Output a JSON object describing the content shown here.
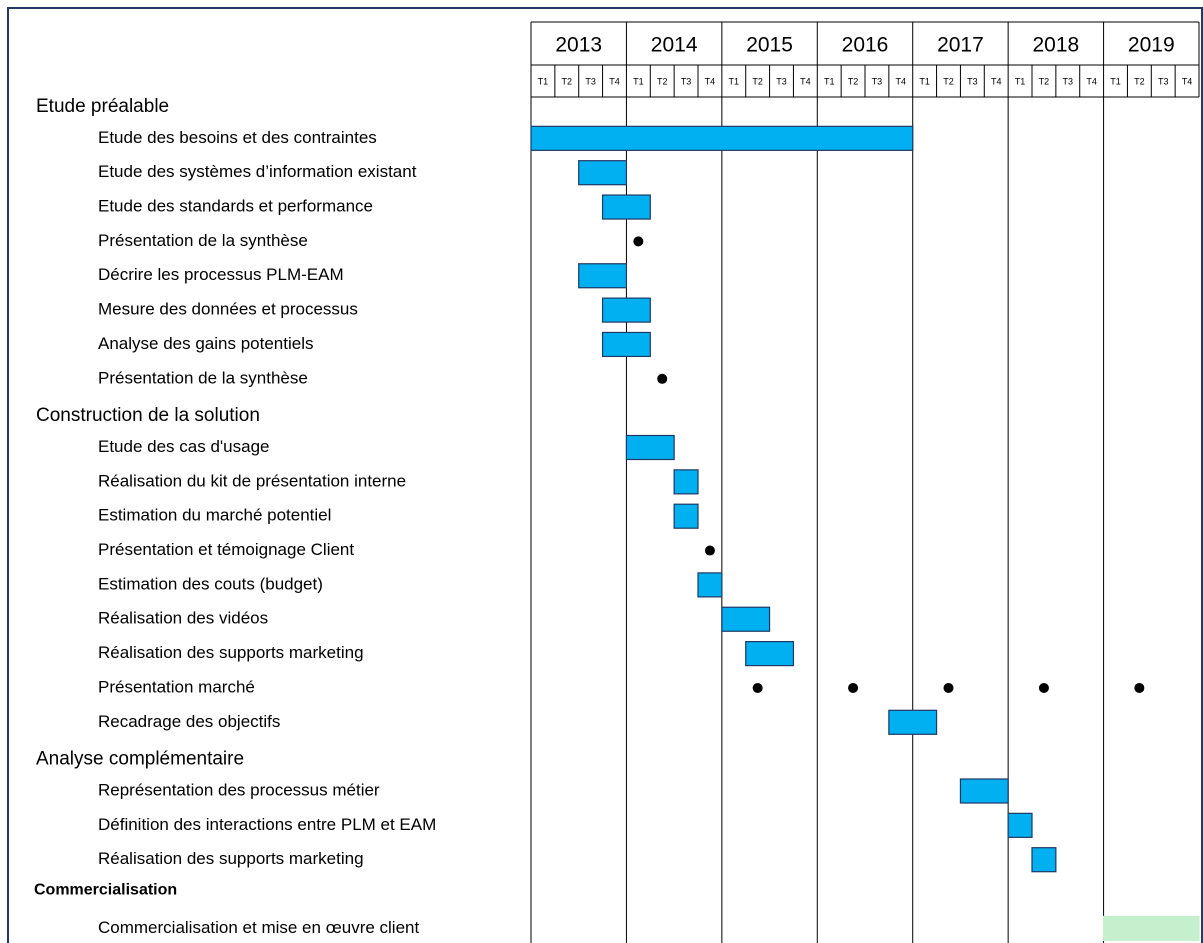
{
  "chart_data": {
    "type": "gantt",
    "years": [
      "2013",
      "2014",
      "2015",
      "2016",
      "2017",
      "2018",
      "2019"
    ],
    "quarters": [
      "T1",
      "T2",
      "T3",
      "T4"
    ],
    "xlim": [
      0,
      28
    ],
    "bar_color": "#00b0f0",
    "alt_color": "#c6efce",
    "milestone_color": "#000000",
    "rows": [
      {
        "label": "Etude préalable",
        "kind": "section"
      },
      {
        "label": "Etude des besoins et des contraintes",
        "start": 0,
        "duration": 16
      },
      {
        "label": "Etude des systèmes d’information existant",
        "start": 2,
        "duration": 2
      },
      {
        "label": "Etude des standards et performance",
        "start": 3,
        "duration": 2
      },
      {
        "label": "Présentation de la synthèse",
        "milestones": [
          4.5
        ]
      },
      {
        "label": "Décrire les processus PLM-EAM",
        "start": 2,
        "duration": 2
      },
      {
        "label": "Mesure des données et processus",
        "start": 3,
        "duration": 2
      },
      {
        "label": "Analyse des gains potentiels",
        "start": 3,
        "duration": 2
      },
      {
        "label": "Présentation de la synthèse",
        "milestones": [
          5.5
        ]
      },
      {
        "label": "Construction de la solution",
        "kind": "section"
      },
      {
        "label": "Etude des cas d'usage",
        "start": 4,
        "duration": 2
      },
      {
        "label": "Réalisation du kit de présentation interne",
        "start": 6,
        "duration": 1
      },
      {
        "label": "Estimation du marché potentiel",
        "start": 6,
        "duration": 1
      },
      {
        "label": "Présentation et témoignage Client",
        "milestones": [
          7.5
        ]
      },
      {
        "label": "Estimation des couts (budget)",
        "start": 7,
        "duration": 1
      },
      {
        "label": "Réalisation des vidéos",
        "start": 8,
        "duration": 2
      },
      {
        "label": "Réalisation des supports marketing",
        "start": 9,
        "duration": 2
      },
      {
        "label": "Présentation marché",
        "milestones": [
          9.5,
          13.5,
          17.5,
          21.5,
          25.5
        ]
      },
      {
        "label": "Recadrage des objectifs",
        "start": 15,
        "duration": 2
      },
      {
        "label": "Analyse complémentaire",
        "kind": "section"
      },
      {
        "label": "Représentation des processus métier",
        "start": 18,
        "duration": 2
      },
      {
        "label": "Définition des interactions entre PLM et EAM",
        "start": 20,
        "duration": 1
      },
      {
        "label": "Réalisation des supports marketing",
        "start": 21,
        "duration": 1
      },
      {
        "label": "Commercialisation",
        "kind": "bold-section"
      },
      {
        "label": "Commercialisation et mise en œuvre client",
        "start": 24,
        "duration": 4,
        "alt": true
      }
    ]
  }
}
